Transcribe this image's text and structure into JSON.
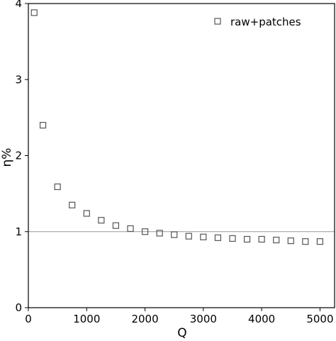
{
  "chart_data": {
    "type": "scatter",
    "title": "",
    "xlabel": "Q",
    "ylabel": "η%",
    "xlim": [
      0,
      5250
    ],
    "ylim": [
      0,
      4
    ],
    "xticks": [
      0,
      1000,
      2000,
      3000,
      4000,
      5000
    ],
    "yticks": [
      0,
      1,
      2,
      3,
      4
    ],
    "xtick_labels": [
      "0",
      "1000",
      "2000",
      "3000",
      "4000",
      "5000"
    ],
    "ytick_labels": [
      "0",
      "1",
      "2",
      "3",
      "4"
    ],
    "reference_line": {
      "y": 1,
      "color": "#999999"
    },
    "legend": {
      "position": "top-right"
    },
    "grid": false,
    "series": [
      {
        "name": "raw+patches",
        "marker": "square-open",
        "color": "#555555",
        "x": [
          100,
          250,
          500,
          750,
          1000,
          1250,
          1500,
          1750,
          2000,
          2250,
          2500,
          2750,
          3000,
          3250,
          3500,
          3750,
          4000,
          4250,
          4500,
          4750,
          5000
        ],
        "y": [
          3.88,
          2.4,
          1.59,
          1.35,
          1.24,
          1.15,
          1.08,
          1.04,
          1.0,
          0.98,
          0.96,
          0.94,
          0.93,
          0.92,
          0.91,
          0.9,
          0.9,
          0.89,
          0.88,
          0.87,
          0.87
        ]
      }
    ]
  }
}
